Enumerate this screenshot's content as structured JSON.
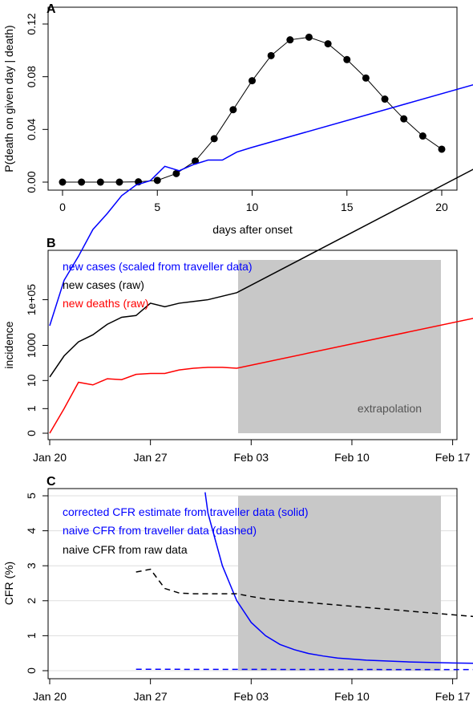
{
  "chart_data": [
    {
      "panel_label": "A",
      "type": "line",
      "xlabel": "days after onset",
      "ylabel": "P(death on given day | death)",
      "xlim": [
        0,
        20
      ],
      "ylim": [
        0,
        0.12
      ],
      "x_ticks": [
        0,
        5,
        10,
        15,
        20
      ],
      "y_ticks": [
        "0.00",
        "0.04",
        "0.08",
        "0.12"
      ],
      "markers": true,
      "x": [
        0,
        1,
        2,
        3,
        4,
        5,
        6,
        7,
        8,
        9,
        10,
        11,
        12,
        13,
        14,
        15,
        16,
        17,
        18,
        19,
        20
      ],
      "y": [
        0.0,
        0.0,
        0.0,
        0.0,
        0.0002,
        0.0013,
        0.0065,
        0.016,
        0.033,
        0.055,
        0.077,
        0.096,
        0.108,
        0.11,
        0.105,
        0.093,
        0.079,
        0.063,
        0.048,
        0.035,
        0.025
      ]
    },
    {
      "panel_label": "B",
      "type": "line",
      "ylabel": "incidence",
      "y_scale": "log (sqrt-like)",
      "x_tick_labels": [
        "Jan 20",
        "Jan 27",
        "Feb 03",
        "Feb 10",
        "Feb 17"
      ],
      "y_tick_labels": [
        "0",
        "1",
        "10",
        "1000",
        "1e+05"
      ],
      "shaded_region_label": "extrapolation",
      "legend": [
        {
          "text": "new cases (scaled from traveller data)",
          "color": "#0000ff"
        },
        {
          "text": "new cases (raw)",
          "color": "#000000"
        },
        {
          "text": "new deaths (raw)",
          "color": "#ff0000"
        }
      ],
      "series": [
        {
          "name": "new cases (scaled from traveller data)",
          "color": "#0000ff",
          "points": [
            [
              0,
              1
            ],
            [
              1,
              1.51
            ],
            [
              2,
              1.78
            ],
            [
              3,
              2.08
            ],
            [
              4,
              2.26
            ],
            [
              5,
              2.46
            ],
            [
              6,
              2.58
            ],
            [
              7,
              2.63
            ],
            [
              8,
              2.79
            ],
            [
              9,
              2.74
            ],
            [
              10,
              2.81
            ],
            [
              11,
              2.86
            ],
            [
              12,
              2.86
            ],
            [
              13,
              2.95
            ],
            [
              14,
              3.0
            ],
            [
              35,
              3.96
            ]
          ]
        },
        {
          "name": "new cases (raw)",
          "color": "#000000",
          "points": [
            [
              0,
              0.32
            ],
            [
              1,
              0.44
            ],
            [
              2,
              0.52
            ],
            [
              3,
              0.56
            ],
            [
              4,
              0.62
            ],
            [
              5,
              0.66
            ],
            [
              6,
              0.67
            ],
            [
              7,
              0.74
            ],
            [
              8,
              0.72
            ],
            [
              9,
              0.74
            ],
            [
              10,
              0.75
            ],
            [
              11,
              0.76
            ],
            [
              12,
              0.78
            ],
            [
              13,
              0.8
            ],
            [
              35,
              1.74
            ]
          ]
        },
        {
          "name": "new deaths (raw)",
          "color": "#ff0000",
          "points": [
            [
              0,
              0
            ],
            [
              1,
              0.14
            ],
            [
              2,
              0.29
            ],
            [
              3,
              0.275
            ],
            [
              4,
              0.31
            ],
            [
              5,
              0.305
            ],
            [
              6,
              0.335
            ],
            [
              7,
              0.34
            ],
            [
              8,
              0.34
            ],
            [
              9,
              0.36
            ],
            [
              10,
              0.37
            ],
            [
              11,
              0.375
            ],
            [
              12,
              0.375
            ],
            [
              13,
              0.37
            ],
            [
              35,
              0.75
            ]
          ]
        }
      ]
    },
    {
      "panel_label": "C",
      "type": "line",
      "ylabel": "CFR (%)",
      "ylim": [
        0,
        5
      ],
      "y_ticks": [
        "0",
        "1",
        "2",
        "3",
        "4",
        "5"
      ],
      "x_tick_labels": [
        "Jan 20",
        "Jan 27",
        "Feb 03",
        "Feb 10",
        "Feb 17"
      ],
      "legend": [
        {
          "text": "corrected CFR estimate from traveller data (solid)",
          "color": "#0000ff"
        },
        {
          "text": "naive CFR from traveller data (dashed)",
          "color": "#0000ff"
        },
        {
          "text": "naive CFR from raw data",
          "color": "#000000"
        }
      ],
      "series": [
        {
          "name": "corrected CFR estimate from traveller data (solid)",
          "color": "#0000ff",
          "dash": false,
          "points": [
            [
              10.8,
              5.1
            ],
            [
              11,
              4.5
            ],
            [
              12,
              3.0
            ],
            [
              13,
              2.0
            ],
            [
              14,
              1.38
            ],
            [
              15,
              1.0
            ],
            [
              16,
              0.75
            ],
            [
              17,
              0.6
            ],
            [
              18,
              0.49
            ],
            [
              19,
              0.42
            ],
            [
              20,
              0.36
            ],
            [
              22,
              0.3
            ],
            [
              25,
              0.25
            ],
            [
              28,
              0.22
            ],
            [
              30,
              0.21
            ]
          ]
        },
        {
          "name": "naive CFR from traveller data (dashed)",
          "color": "#0000ff",
          "dash": true,
          "points": [
            [
              6,
              0.04
            ],
            [
              30,
              0.03
            ]
          ]
        },
        {
          "name": "naive CFR from raw data",
          "color": "#000000",
          "dash": true,
          "points": [
            [
              6,
              2.82
            ],
            [
              7,
              2.9
            ],
            [
              8,
              2.35
            ],
            [
              9,
              2.22
            ],
            [
              10,
              2.2
            ],
            [
              11,
              2.2
            ],
            [
              12,
              2.2
            ],
            [
              13,
              2.2
            ],
            [
              14,
              2.12
            ],
            [
              15,
              2.05
            ],
            [
              30,
              1.53
            ]
          ]
        }
      ]
    }
  ]
}
